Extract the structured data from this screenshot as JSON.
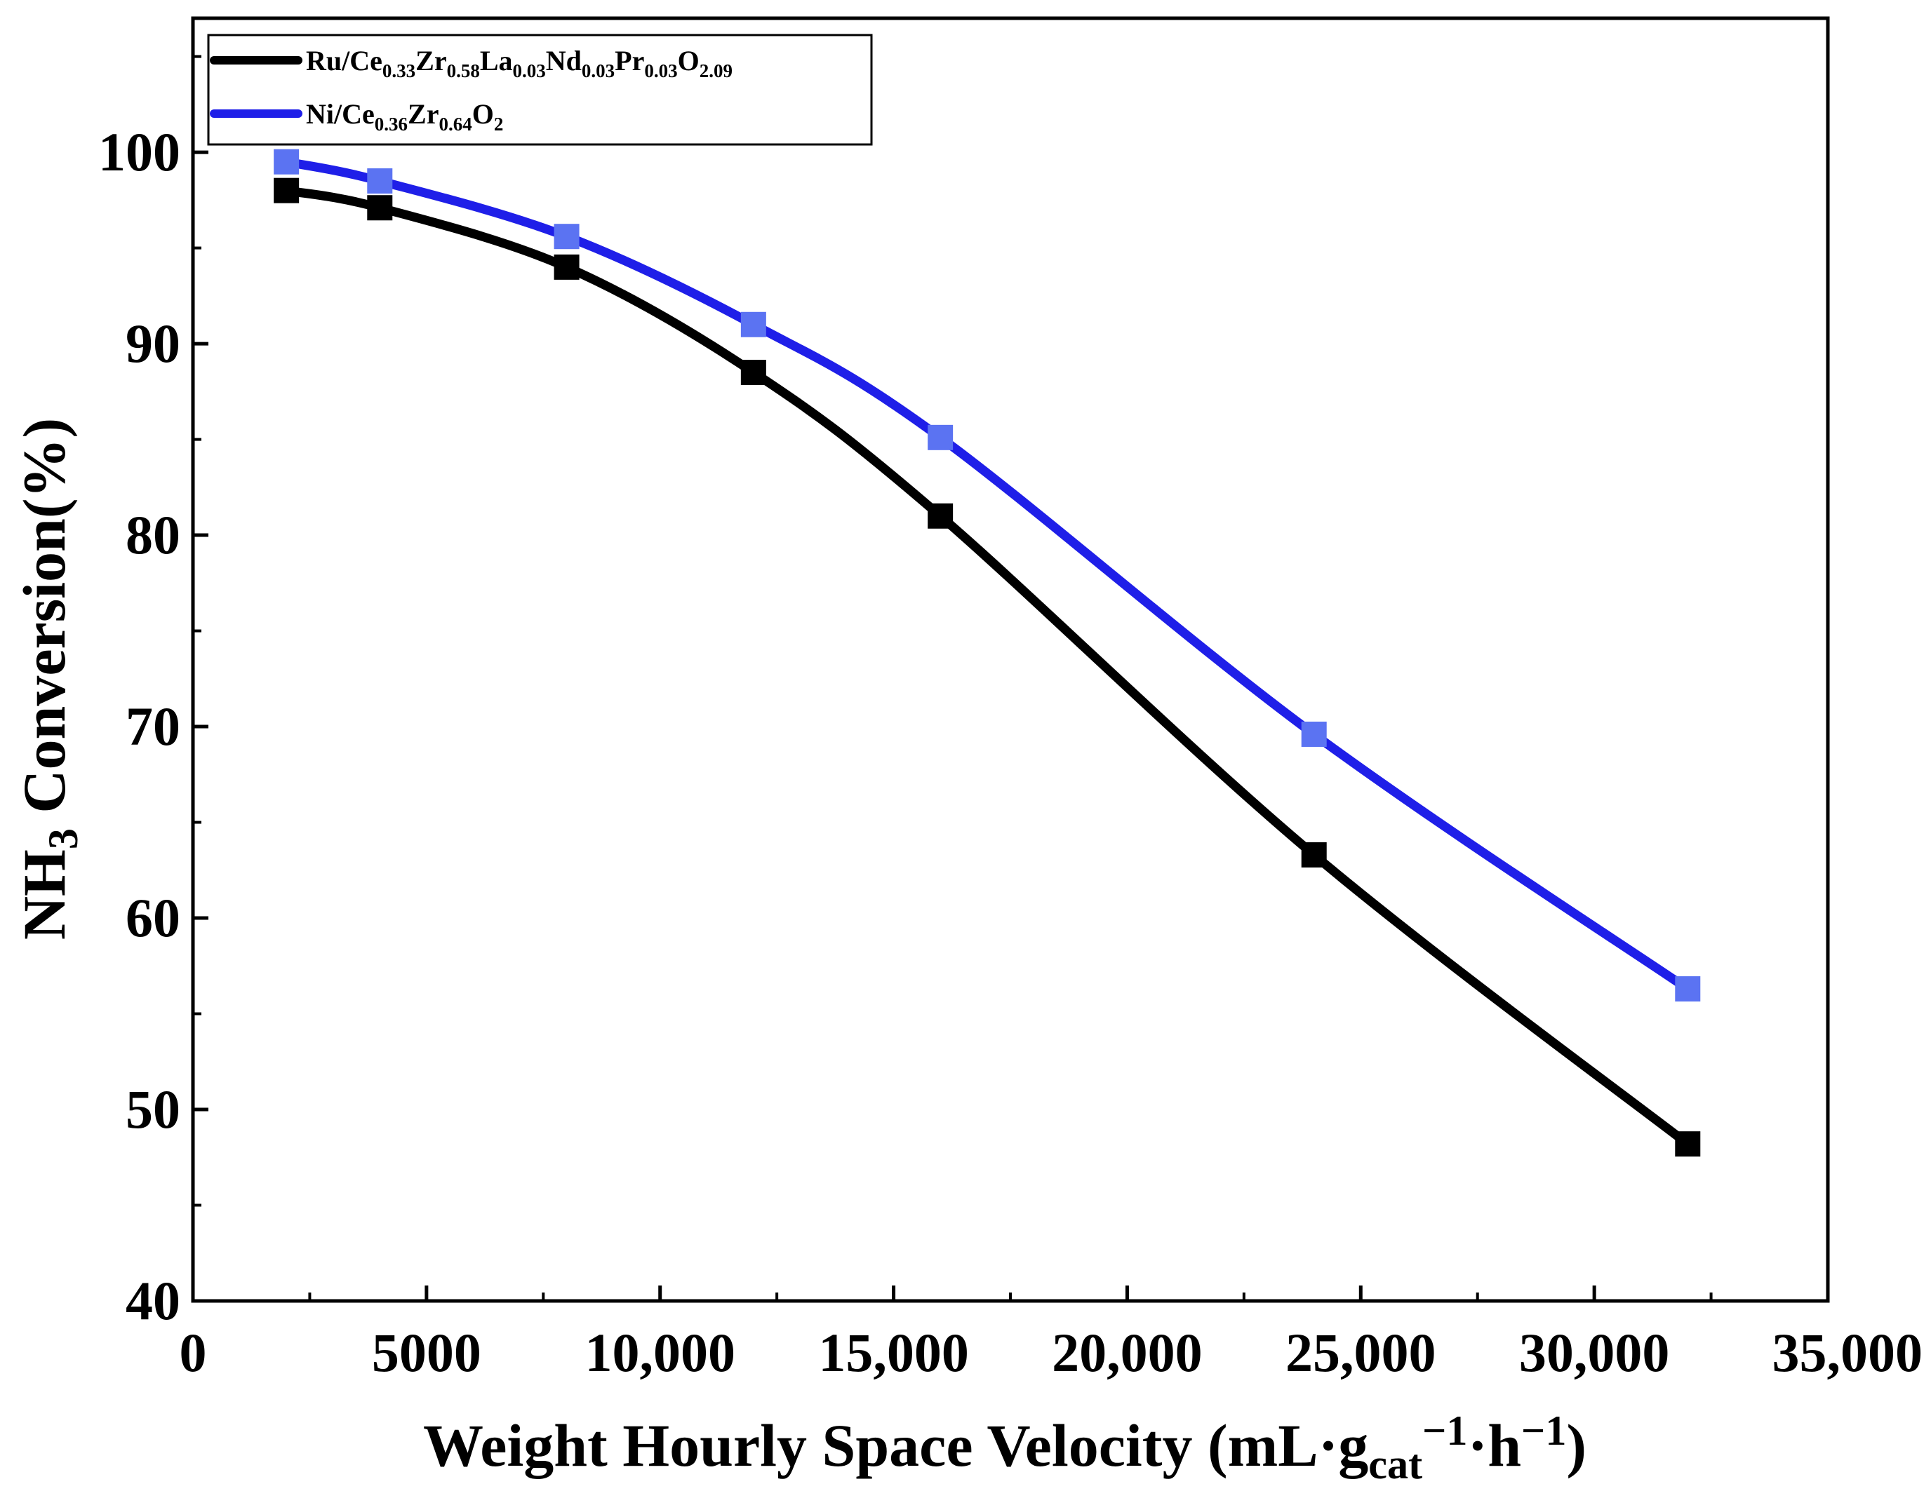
{
  "chart_data": {
    "type": "line",
    "title": "",
    "xlabel": "Weight Hourly Space Velocity (mL·g",
    "xlabel_sub": "cat",
    "xlabel_sup": "−1",
    "xlabel_mid": "·h",
    "xlabel_sup2": "−1",
    "xlabel_end": ")",
    "ylabel": "NH",
    "ylabel_sub": "3",
    "ylabel_end": " Conversion(%)",
    "xlim": [
      0,
      35000
    ],
    "ylim": [
      40,
      107
    ],
    "x_ticks": [
      0,
      5000,
      10000,
      15000,
      20000,
      25000,
      30000,
      35000
    ],
    "x_tick_labels": [
      "0",
      "5000",
      "10,000",
      "15,000",
      "20,000",
      "25,000",
      "30,000",
      "35,000"
    ],
    "y_ticks": [
      40,
      50,
      60,
      70,
      80,
      90,
      100
    ],
    "y_tick_labels": [
      "40",
      "50",
      "60",
      "70",
      "80",
      "90",
      "100"
    ],
    "x": [
      2000,
      4000,
      8000,
      12000,
      16000,
      24000,
      32000
    ],
    "series": [
      {
        "name": "Ru/Ce0.33Zr0.58La0.03Nd0.03Pr0.03O2.09",
        "legend_parts": [
          [
            "Ru/Ce",
            ""
          ],
          [
            "0.33",
            "sub"
          ],
          [
            "Zr",
            ""
          ],
          [
            "0.58",
            "sub"
          ],
          [
            "La",
            ""
          ],
          [
            "0.03",
            "sub"
          ],
          [
            "Nd",
            ""
          ],
          [
            "0.03",
            "sub"
          ],
          [
            "Pr",
            ""
          ],
          [
            "0.03",
            "sub"
          ],
          [
            "O",
            ""
          ],
          [
            "2.09",
            "sub"
          ]
        ],
        "line_color": "#000000",
        "marker_color": "#000000",
        "values": [
          98.0,
          97.1,
          94.0,
          88.5,
          81.0,
          63.3,
          48.2
        ]
      },
      {
        "name": "Ni/Ce0.36Zr0.64O2",
        "legend_parts": [
          [
            "Ni/Ce",
            ""
          ],
          [
            "0.36",
            "sub"
          ],
          [
            "Zr",
            ""
          ],
          [
            "0.64",
            "sub"
          ],
          [
            "O",
            ""
          ],
          [
            "2",
            "sub"
          ]
        ],
        "line_color": "#1f1fe8",
        "marker_color": "#5b73f2",
        "values": [
          99.5,
          98.5,
          95.6,
          91.0,
          85.1,
          69.6,
          56.3
        ]
      }
    ],
    "legend_position": "top-left",
    "grid": false
  }
}
